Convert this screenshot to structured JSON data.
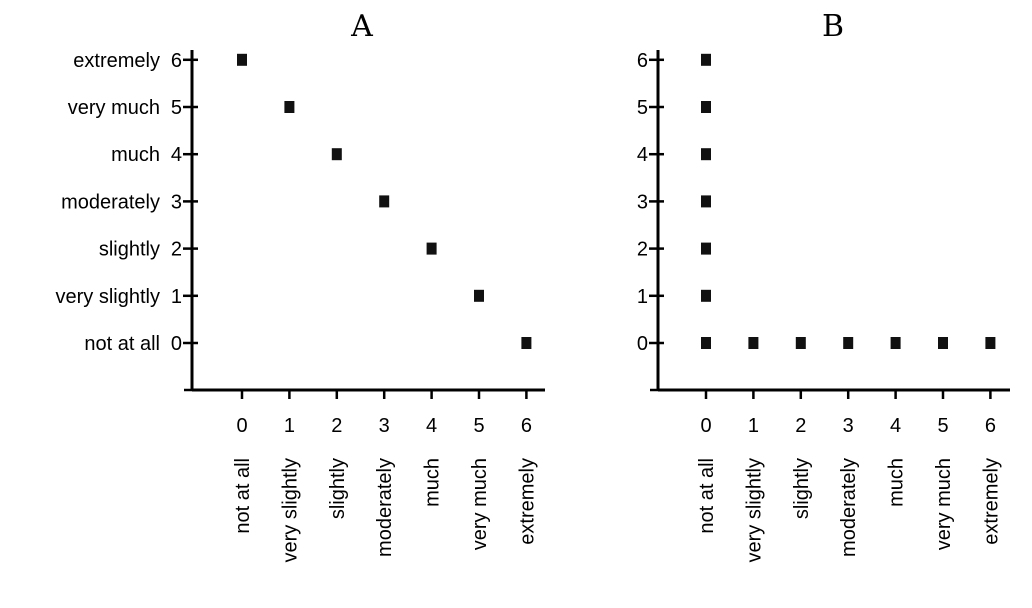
{
  "chart_data": [
    {
      "type": "scatter",
      "title": "A",
      "xlabel": "",
      "ylabel": "",
      "xlim": [
        0,
        6
      ],
      "ylim": [
        0,
        6
      ],
      "x_ticks": [
        0,
        1,
        2,
        3,
        4,
        5,
        6
      ],
      "x_tick_labels": [
        "0",
        "1",
        "2",
        "3",
        "4",
        "5",
        "6"
      ],
      "x_tick_words": [
        "not at all",
        "very slightly",
        "slightly",
        "moderately",
        "much",
        "very much",
        "extremely"
      ],
      "y_ticks": [
        0,
        1,
        2,
        3,
        4,
        5,
        6
      ],
      "y_tick_labels": [
        "0",
        "1",
        "2",
        "3",
        "4",
        "5",
        "6"
      ],
      "y_tick_words": [
        "not at all",
        "very slightly",
        "slightly",
        "moderately",
        "much",
        "very much",
        "extremely"
      ],
      "grid": false,
      "points": [
        {
          "x": 0,
          "y": 6
        },
        {
          "x": 1,
          "y": 5
        },
        {
          "x": 2,
          "y": 4
        },
        {
          "x": 3,
          "y": 3
        },
        {
          "x": 4,
          "y": 2
        },
        {
          "x": 5,
          "y": 1
        },
        {
          "x": 6,
          "y": 0
        }
      ]
    },
    {
      "type": "scatter",
      "title": "B",
      "xlabel": "",
      "ylabel": "",
      "xlim": [
        0,
        6
      ],
      "ylim": [
        0,
        6
      ],
      "x_ticks": [
        0,
        1,
        2,
        3,
        4,
        5,
        6
      ],
      "x_tick_labels": [
        "0",
        "1",
        "2",
        "3",
        "4",
        "5",
        "6"
      ],
      "x_tick_words": [
        "not at all",
        "very slightly",
        "slightly",
        "moderately",
        "much",
        "very much",
        "extremely"
      ],
      "y_ticks": [
        0,
        1,
        2,
        3,
        4,
        5,
        6
      ],
      "y_tick_labels": [
        "0",
        "1",
        "2",
        "3",
        "4",
        "5",
        "6"
      ],
      "y_tick_words": [],
      "grid": false,
      "points": [
        {
          "x": 0,
          "y": 6
        },
        {
          "x": 0,
          "y": 5
        },
        {
          "x": 0,
          "y": 4
        },
        {
          "x": 0,
          "y": 3
        },
        {
          "x": 0,
          "y": 2
        },
        {
          "x": 0,
          "y": 1
        },
        {
          "x": 0,
          "y": 0
        },
        {
          "x": 1,
          "y": 0
        },
        {
          "x": 2,
          "y": 0
        },
        {
          "x": 3,
          "y": 0
        },
        {
          "x": 4,
          "y": 0
        },
        {
          "x": 5,
          "y": 0
        },
        {
          "x": 6,
          "y": 0
        }
      ]
    }
  ]
}
